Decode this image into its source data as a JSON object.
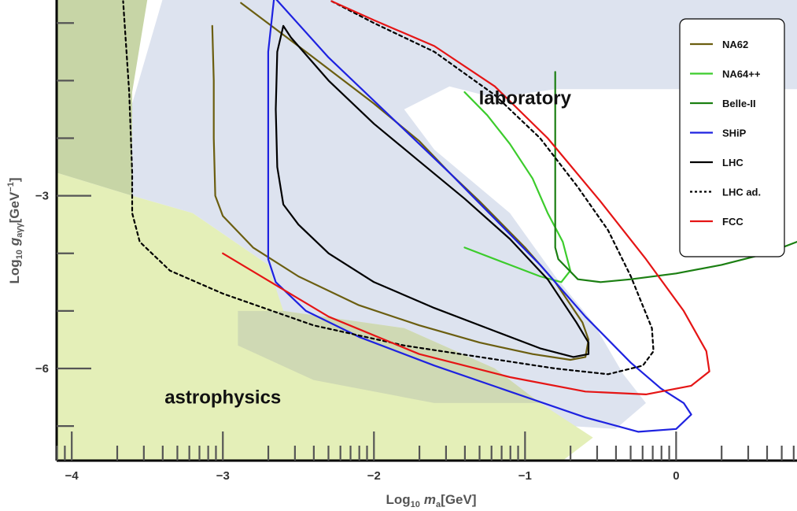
{
  "chart_data": {
    "type": "line",
    "title": "",
    "xlabel": "Log₁₀ mₐ[GeV]",
    "ylabel": "Log₁₀ gₐγγ[GeV⁻¹]",
    "xlabel_parts": {
      "prefix": "Log",
      "sub": "10",
      "var": "m",
      "var_sub": "a",
      "unit": "[GeV]"
    },
    "ylabel_parts": {
      "prefix": "Log",
      "sub": "10",
      "var": "g",
      "var_sub": "aγγ",
      "unit_open": "[GeV",
      "unit_sup": "−1",
      "unit_close": "]"
    },
    "xlim": [
      -4.1,
      0.8
    ],
    "ylim": [
      -7.6,
      0.4
    ],
    "x_ticks": [
      -4,
      -3,
      -2,
      -1,
      0
    ],
    "x_tick_labels": [
      "−4",
      "−3",
      "−2",
      "−1",
      "0"
    ],
    "y_ticks": [
      -3,
      -6
    ],
    "y_tick_labels": [
      "−3",
      "−6"
    ],
    "grid": false,
    "legend_position": "top-right",
    "annotations": [
      {
        "text": "laboratory",
        "x": -1.0,
        "y": -1.3
      },
      {
        "text": "astrophysics",
        "x": -3.0,
        "y": -6.5
      }
    ],
    "regions": [
      {
        "name": "laboratory",
        "color": "#dde3ef",
        "points": [
          [
            -4.1,
            0.4
          ],
          [
            0.8,
            0.4
          ],
          [
            0.8,
            -1.15
          ],
          [
            -0.8,
            -1.15
          ],
          [
            -1.2,
            -1.3
          ],
          [
            -1.5,
            -1.1
          ],
          [
            -1.8,
            -1.5
          ],
          [
            -1.6,
            -2.2
          ],
          [
            -1.1,
            -3.3
          ],
          [
            -0.8,
            -4.4
          ],
          [
            -0.55,
            -5.2
          ],
          [
            -0.35,
            -6.1
          ],
          [
            -0.2,
            -6.6
          ],
          [
            -0.4,
            -7.05
          ],
          [
            -1.0,
            -6.95
          ],
          [
            -1.6,
            -6.6
          ],
          [
            -2.4,
            -6.2
          ],
          [
            -3.2,
            -5.4
          ],
          [
            -3.6,
            -5.0
          ],
          [
            -3.6,
            -1.4
          ],
          [
            -3.4,
            0.4
          ]
        ]
      },
      {
        "name": "laboratory-gap",
        "color": "#ffffff",
        "points": [
          [
            -3.6,
            -3.0
          ],
          [
            -3.6,
            -5.0
          ],
          [
            -2.9,
            -5.0
          ],
          [
            -2.7,
            -4.2
          ],
          [
            -3.2,
            -3.3
          ]
        ]
      },
      {
        "name": "astrophysics-green",
        "color": "#e4efb8",
        "points": [
          [
            -4.1,
            -2.6
          ],
          [
            -3.6,
            -3.0
          ],
          [
            -3.2,
            -3.3
          ],
          [
            -2.7,
            -4.2
          ],
          [
            -2.6,
            -5.0
          ],
          [
            -1.8,
            -5.3
          ],
          [
            -1.2,
            -6.0
          ],
          [
            -0.9,
            -6.6
          ],
          [
            -0.55,
            -7.2
          ],
          [
            -0.75,
            -7.6
          ],
          [
            -4.1,
            -7.6
          ]
        ]
      },
      {
        "name": "astrophysics-overlap",
        "color": "#c7d5a6",
        "points": [
          [
            -4.1,
            0.4
          ],
          [
            -3.5,
            0.4
          ],
          [
            -3.6,
            -1.2
          ],
          [
            -3.6,
            -3.0
          ],
          [
            -4.1,
            -2.6
          ]
        ]
      },
      {
        "name": "astrophysics-overlap-2",
        "color": "#cfd9b4",
        "points": [
          [
            -2.9,
            -5.0
          ],
          [
            -2.6,
            -5.0
          ],
          [
            -1.8,
            -5.3
          ],
          [
            -1.2,
            -6.0
          ],
          [
            -0.9,
            -6.6
          ],
          [
            -1.6,
            -6.6
          ],
          [
            -2.4,
            -6.2
          ],
          [
            -2.9,
            -5.6
          ]
        ]
      }
    ],
    "series": [
      {
        "name": "NA62",
        "color": "#6b5e10",
        "dash": "solid",
        "x": [
          -3.07,
          -3.06,
          -3.06,
          -3.05,
          -3.0,
          -2.8,
          -2.5,
          -2.1,
          -1.7,
          -1.3,
          -0.95,
          -0.7,
          -0.6,
          -0.58,
          -0.62,
          -0.8,
          -1.0,
          -1.3,
          -1.5,
          -1.7,
          -2.0,
          -2.4,
          -2.88
        ],
        "y": [
          -0.05,
          -1.0,
          -2.0,
          -3.0,
          -3.35,
          -3.9,
          -4.4,
          -4.9,
          -5.25,
          -5.55,
          -5.75,
          -5.85,
          -5.8,
          -5.5,
          -5.2,
          -4.5,
          -3.9,
          -3.1,
          -2.6,
          -2.05,
          -1.4,
          -0.6,
          0.35
        ]
      },
      {
        "name": "NA64++",
        "color": "#3ccc2c",
        "dash": "solid",
        "x": [
          -1.4,
          -1.25,
          -1.1,
          -0.95,
          -0.85,
          -0.75,
          -0.7,
          -0.76,
          -0.9,
          -1.1,
          -1.4
        ],
        "y": [
          -1.2,
          -1.6,
          -2.1,
          -2.7,
          -3.3,
          -3.8,
          -4.3,
          -4.5,
          -4.4,
          -4.2,
          -3.9
        ]
      },
      {
        "name": "Belle-II",
        "color": "#1b7f12",
        "dash": "solid",
        "x": [
          -0.8,
          -0.8,
          -0.8,
          -0.8,
          -0.78,
          -0.65,
          -0.5,
          -0.3,
          0.0,
          0.3,
          0.6,
          0.8
        ],
        "y": [
          -0.85,
          -2.0,
          -3.0,
          -3.9,
          -4.1,
          -4.45,
          -4.5,
          -4.45,
          -4.35,
          -4.2,
          -4.0,
          -3.8
        ]
      },
      {
        "name": "SHiP",
        "color": "#1e22e0",
        "dash": "solid",
        "x": [
          -2.66,
          -2.7,
          -2.7,
          -2.7,
          -2.65,
          -2.45,
          -2.1,
          -1.6,
          -1.1,
          -0.6,
          -0.25,
          0.0,
          0.1,
          0.05,
          -0.1,
          -0.3,
          -0.6,
          -0.9,
          -1.2,
          -1.5,
          -1.9,
          -2.3,
          -2.66
        ],
        "y": [
          0.45,
          -0.5,
          -2.0,
          -4.1,
          -4.5,
          -5.0,
          -5.45,
          -5.95,
          -6.4,
          -6.85,
          -7.1,
          -7.05,
          -6.8,
          -6.6,
          -6.35,
          -5.9,
          -5.1,
          -4.2,
          -3.4,
          -2.6,
          -1.6,
          -0.6,
          0.45
        ]
      },
      {
        "name": "LHC",
        "color": "#000000",
        "dash": "solid",
        "x": [
          -2.6,
          -2.64,
          -2.65,
          -2.64,
          -2.6,
          -2.5,
          -2.3,
          -2.0,
          -1.6,
          -1.2,
          -0.9,
          -0.68,
          -0.58,
          -0.58,
          -0.66,
          -0.85,
          -1.1,
          -1.4,
          -1.7,
          -2.0,
          -2.3,
          -2.55,
          -2.6
        ],
        "y": [
          -0.05,
          -0.5,
          -1.5,
          -2.5,
          -3.15,
          -3.5,
          -4.0,
          -4.5,
          -4.95,
          -5.35,
          -5.65,
          -5.8,
          -5.75,
          -5.55,
          -5.2,
          -4.45,
          -3.75,
          -3.05,
          -2.4,
          -1.75,
          -1.0,
          -0.25,
          -0.05
        ]
      },
      {
        "name": "LHC ad.",
        "color": "#000000",
        "dash": "dashed",
        "x": [
          -2.28,
          -2.0,
          -1.6,
          -1.2,
          -0.9,
          -0.65,
          -0.45,
          -0.3,
          -0.16,
          -0.15,
          -0.22,
          -0.45,
          -0.8,
          -1.3,
          -1.8,
          -2.4,
          -3.0,
          -3.35,
          -3.55,
          -3.6,
          -3.6,
          -3.62,
          -3.66
        ],
        "y": [
          0.38,
          0.0,
          -0.5,
          -1.25,
          -2.0,
          -2.85,
          -3.6,
          -4.4,
          -5.3,
          -5.7,
          -5.95,
          -6.1,
          -6.0,
          -5.8,
          -5.6,
          -5.25,
          -4.7,
          -4.3,
          -3.8,
          -3.3,
          -2.6,
          -1.2,
          0.38
        ]
      },
      {
        "name": "FCC",
        "color": "#e51515",
        "dash": "solid",
        "x": [
          -2.28,
          -2.0,
          -1.6,
          -1.2,
          -0.85,
          -0.5,
          -0.2,
          0.05,
          0.2,
          0.22,
          0.1,
          -0.2,
          -0.6,
          -1.1,
          -1.7,
          -2.3,
          -3.0
        ],
        "y": [
          0.38,
          0.05,
          -0.4,
          -1.1,
          -2.0,
          -3.1,
          -4.1,
          -5.0,
          -5.7,
          -6.05,
          -6.3,
          -6.45,
          -6.4,
          -6.15,
          -5.75,
          -5.1,
          -4.0
        ]
      }
    ]
  }
}
